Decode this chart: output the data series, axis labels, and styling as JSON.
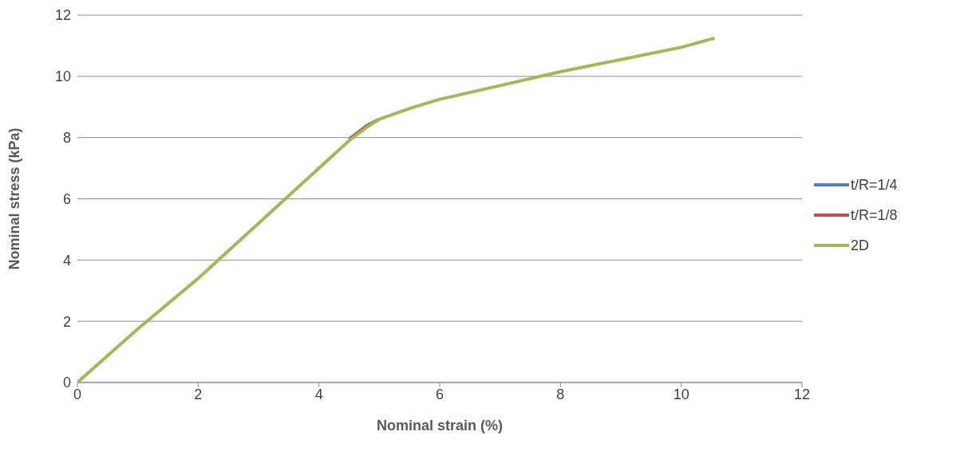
{
  "chart_data": {
    "type": "line",
    "xlabel": "Nominal strain (%)",
    "ylabel": "Nominal stress  (kPa)",
    "xlim": [
      0,
      12
    ],
    "xticks": [
      0,
      2,
      4,
      6,
      8,
      10,
      12
    ],
    "ylim": [
      0,
      12
    ],
    "yticks": [
      0,
      2,
      4,
      6,
      8,
      10,
      12
    ],
    "grid": "y",
    "legend": "right",
    "marker": "none",
    "line_style": "solid",
    "series": [
      {
        "name": "t/R=1/4",
        "color": "#4f81bd"
      },
      {
        "name": "t/R=1/8",
        "color": "#c0504d",
        "x": [
          4.5,
          4.8,
          5
        ],
        "values": [
          7.95,
          8.4,
          8.6
        ]
      },
      {
        "name": "2D",
        "color": "#9bbb59",
        "x": [
          0,
          1,
          2,
          3,
          4,
          4.5,
          4.8,
          5,
          5.5,
          6,
          7,
          8,
          9,
          10,
          10.55
        ],
        "values": [
          0,
          1.75,
          3.4,
          5.2,
          7.0,
          7.9,
          8.35,
          8.6,
          8.95,
          9.25,
          9.7,
          10.15,
          10.55,
          10.95,
          11.25
        ]
      }
    ]
  }
}
